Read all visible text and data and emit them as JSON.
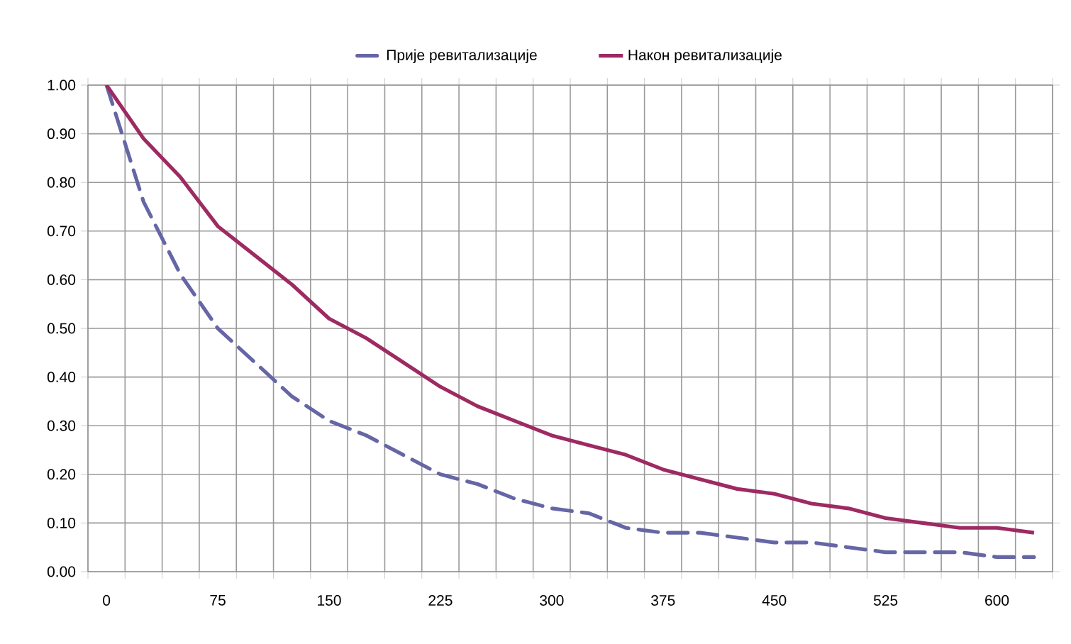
{
  "chart_data": {
    "type": "line",
    "categories": [
      "0",
      null,
      null,
      "75",
      null,
      null,
      "150",
      null,
      null,
      "225",
      null,
      null,
      "300",
      null,
      null,
      "375",
      null,
      null,
      "450",
      null,
      null,
      "525",
      null,
      null,
      "600",
      null
    ],
    "series": [
      {
        "name": "Прије ревитализације",
        "color": "#6666a6",
        "line_style": "dashed",
        "values": [
          1.0,
          0.76,
          0.61,
          0.5,
          0.43,
          0.36,
          0.31,
          0.28,
          0.24,
          0.2,
          0.18,
          0.15,
          0.13,
          0.12,
          0.09,
          0.08,
          0.08,
          0.07,
          0.06,
          0.06,
          0.05,
          0.04,
          0.04,
          0.04,
          0.03,
          0.03
        ]
      },
      {
        "name": "Након ревитализације",
        "color": "#9e2a62",
        "line_style": "solid",
        "values": [
          1.0,
          0.89,
          0.81,
          0.71,
          0.65,
          0.59,
          0.52,
          0.48,
          0.43,
          0.38,
          0.34,
          0.31,
          0.28,
          0.26,
          0.24,
          0.21,
          0.19,
          0.17,
          0.16,
          0.14,
          0.13,
          0.11,
          0.1,
          0.09,
          0.09,
          0.08
        ]
      }
    ],
    "ylim": [
      0,
      1
    ],
    "yticks": [
      {
        "value": 0,
        "label": "0.00"
      },
      {
        "value": 0.1,
        "label": "0.10"
      },
      {
        "value": 0.2,
        "label": "0.20"
      },
      {
        "value": 0.3,
        "label": "0.30"
      },
      {
        "value": 0.4,
        "label": "0.40"
      },
      {
        "value": 0.5,
        "label": "0.50"
      },
      {
        "value": 0.6,
        "label": "0.60"
      },
      {
        "value": 0.7,
        "label": "0.70"
      },
      {
        "value": 0.8,
        "label": "0.80"
      },
      {
        "value": 0.9,
        "label": "0.90"
      },
      {
        "value": 1,
        "label": "1.00"
      }
    ],
    "grid": true,
    "legend": "top",
    "marker": "none"
  }
}
